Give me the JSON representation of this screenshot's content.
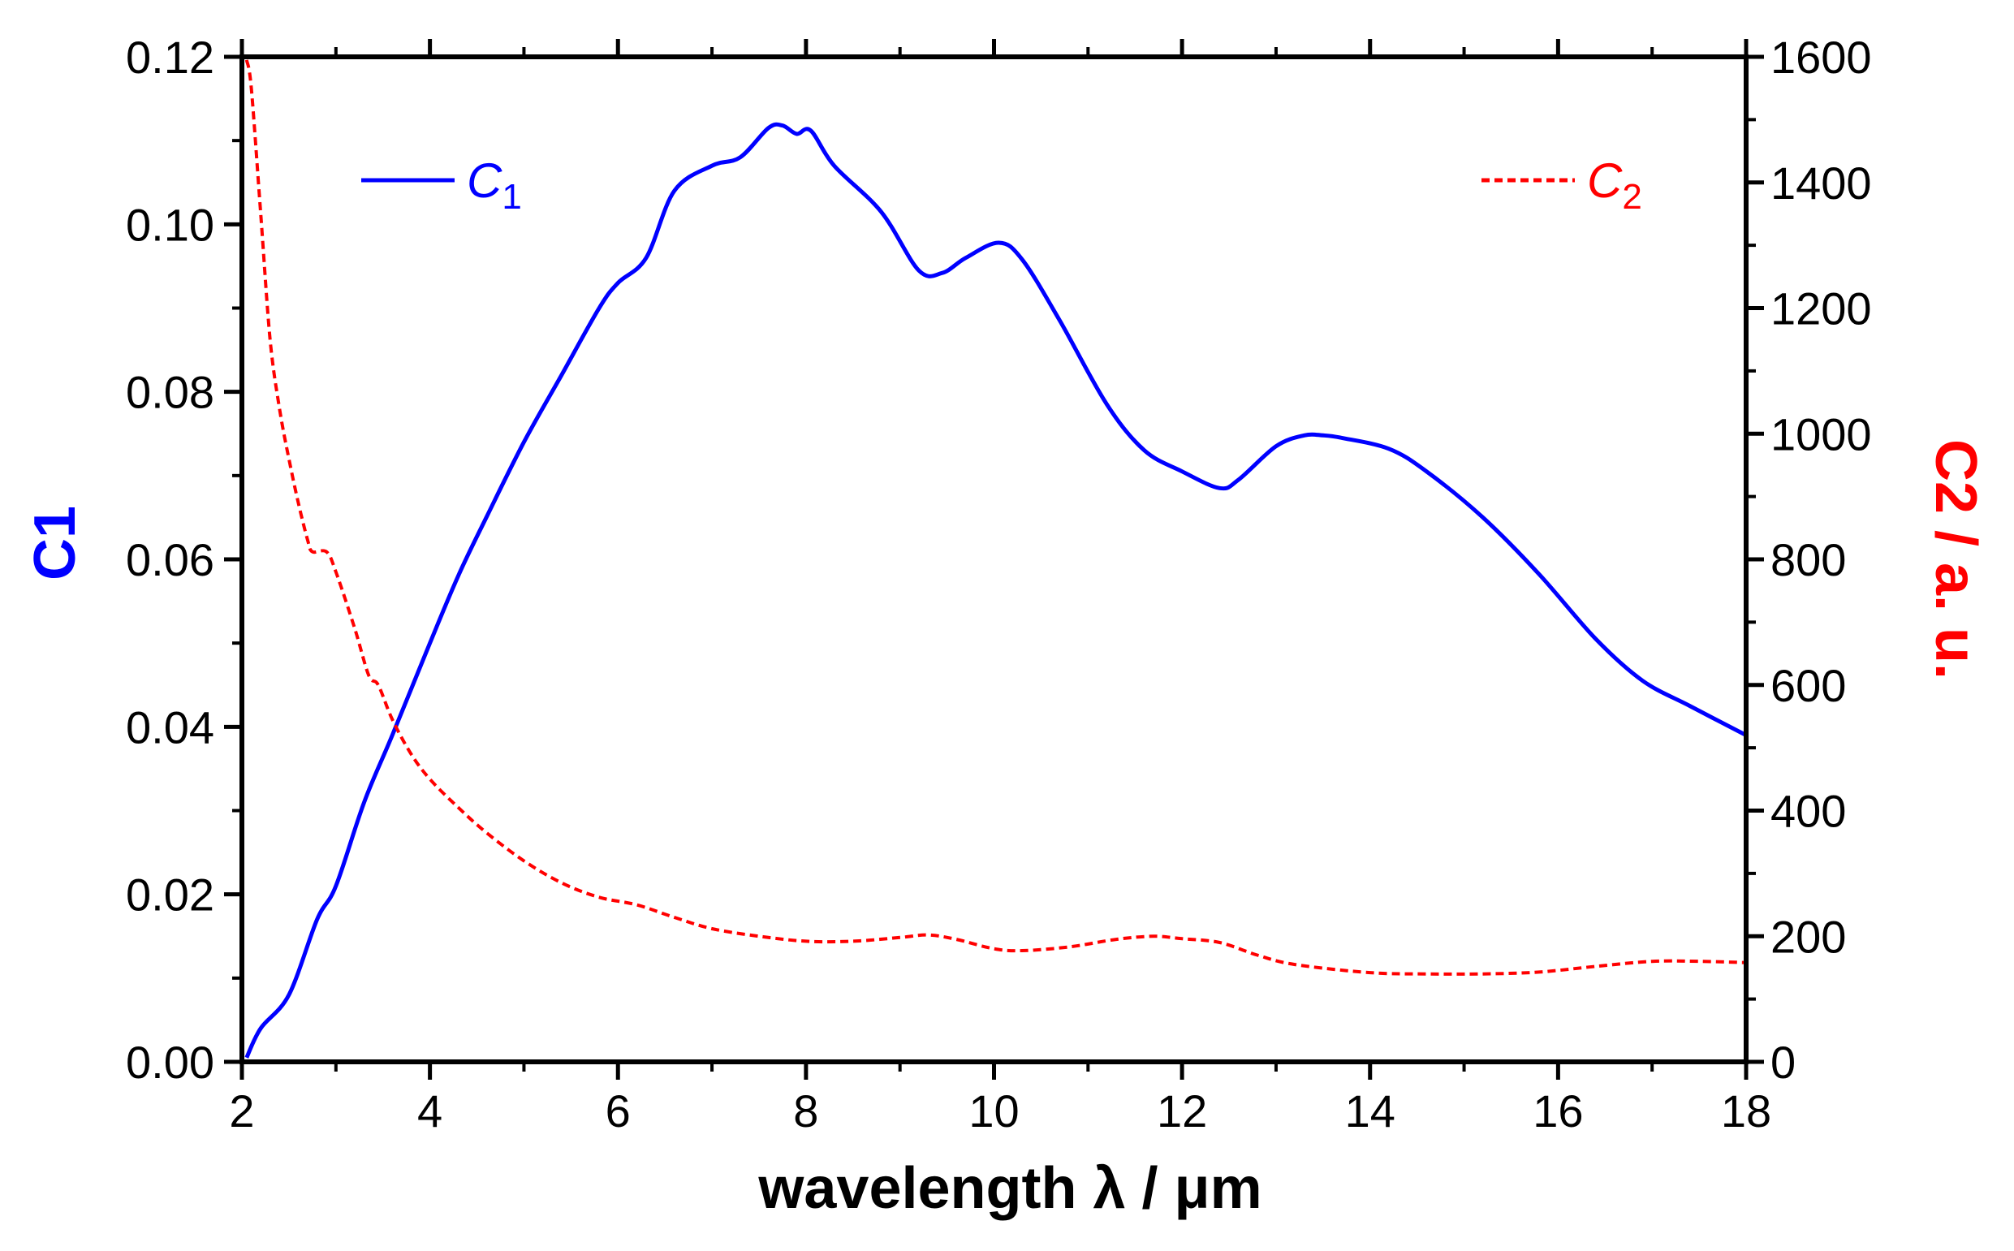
{
  "chart_data": {
    "type": "line",
    "xlabel": "wavelength λ / μm",
    "ylabel_left": "C1",
    "ylabel_right": "C2 / a. u.",
    "xlim": [
      2,
      18
    ],
    "ylim_left": [
      0,
      0.12
    ],
    "ylim_right": [
      0,
      1600
    ],
    "x_ticks": [
      2,
      4,
      6,
      8,
      10,
      12,
      14,
      16,
      18
    ],
    "x_tick_labels": [
      "2",
      "4",
      "6",
      "8",
      "10",
      "12",
      "14",
      "16",
      "18"
    ],
    "y_left_ticks": [
      0,
      0.02,
      0.04,
      0.06,
      0.08,
      0.1,
      0.12
    ],
    "y_left_tick_labels": [
      "0.00",
      "0.02",
      "0.04",
      "0.06",
      "0.08",
      "0.10",
      "0.12"
    ],
    "y_right_ticks": [
      0,
      200,
      400,
      600,
      800,
      1000,
      1200,
      1400,
      1600
    ],
    "y_right_tick_labels": [
      "0",
      "200",
      "400",
      "600",
      "800",
      "1000",
      "1200",
      "1400",
      "1600"
    ],
    "legend": {
      "c1_label": "C",
      "c1_sub": "1",
      "c2_label": "C",
      "c2_sub": "2"
    },
    "colors": {
      "c1": "#0000ff",
      "c2": "#ff0000"
    },
    "series": [
      {
        "name": "C1",
        "axis": "left",
        "style": "solid",
        "x": [
          2.05,
          2.2,
          2.5,
          2.8,
          3.0,
          3.3,
          3.6,
          4.0,
          4.3,
          4.6,
          5.0,
          5.4,
          5.8,
          6.0,
          6.3,
          6.6,
          7.0,
          7.3,
          7.6,
          7.75,
          7.9,
          8.05,
          8.3,
          8.8,
          9.2,
          9.45,
          9.7,
          10.05,
          10.3,
          10.7,
          11.2,
          11.6,
          12.0,
          12.4,
          12.6,
          13.0,
          13.3,
          13.5,
          13.7,
          14.2,
          14.6,
          15.2,
          15.8,
          16.4,
          16.9,
          17.4,
          18.0
        ],
        "y": [
          0.0005,
          0.004,
          0.008,
          0.017,
          0.021,
          0.031,
          0.039,
          0.05,
          0.058,
          0.065,
          0.074,
          0.082,
          0.09,
          0.093,
          0.096,
          0.104,
          0.107,
          0.108,
          0.1115,
          0.1118,
          0.1108,
          0.1112,
          0.107,
          0.1015,
          0.0945,
          0.0942,
          0.096,
          0.0978,
          0.0958,
          0.0885,
          0.0785,
          0.073,
          0.0705,
          0.0685,
          0.0695,
          0.0735,
          0.0748,
          0.0748,
          0.0745,
          0.0732,
          0.0705,
          0.065,
          0.0582,
          0.0505,
          0.0455,
          0.0425,
          0.039
        ]
      },
      {
        "name": "C2",
        "axis": "right",
        "style": "dashed",
        "x": [
          2.05,
          2.1,
          2.2,
          2.3,
          2.4,
          2.5,
          2.6,
          2.7,
          2.75,
          2.9,
          3.0,
          3.2,
          3.35,
          3.45,
          3.6,
          3.8,
          4.0,
          4.3,
          4.6,
          5.0,
          5.4,
          5.8,
          6.2,
          6.6,
          7.0,
          7.5,
          8.0,
          8.5,
          9.0,
          9.3,
          9.6,
          10.0,
          10.3,
          10.8,
          11.3,
          11.7,
          12.0,
          12.4,
          12.8,
          13.2,
          14.0,
          14.6,
          15.2,
          15.8,
          16.4,
          17.0,
          17.5,
          18.0
        ],
        "y": [
          1595,
          1550,
          1350,
          1150,
          1040,
          960,
          890,
          830,
          812,
          812,
          780,
          690,
          615,
          600,
          545,
          490,
          450,
          405,
          365,
          320,
          285,
          262,
          250,
          230,
          212,
          200,
          192,
          192,
          198,
          202,
          195,
          180,
          177,
          183,
          195,
          200,
          196,
          190,
          170,
          155,
          142,
          140,
          140,
          143,
          152,
          160,
          160,
          158
        ]
      }
    ]
  }
}
